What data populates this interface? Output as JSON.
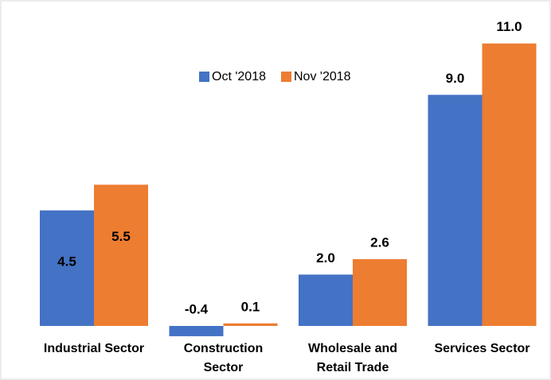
{
  "chart_data": {
    "type": "bar",
    "categories": [
      "Industrial Sector",
      "Construction Sector",
      "Wholesale and Retail Trade",
      "Services Sector"
    ],
    "series": [
      {
        "name": "Oct '2018",
        "color": "#4472c4",
        "values": [
          4.5,
          -0.4,
          2.0,
          9.0
        ],
        "value_labels": [
          "4.5",
          "-0.4",
          "2.0",
          "9.0"
        ]
      },
      {
        "name": "Nov '2018",
        "color": "#ed7d31",
        "values": [
          5.5,
          0.1,
          2.6,
          11.0
        ],
        "value_labels": [
          "5.5",
          "0.1",
          "2.6",
          "11.0"
        ]
      }
    ],
    "legend": "top",
    "grid": false
  }
}
